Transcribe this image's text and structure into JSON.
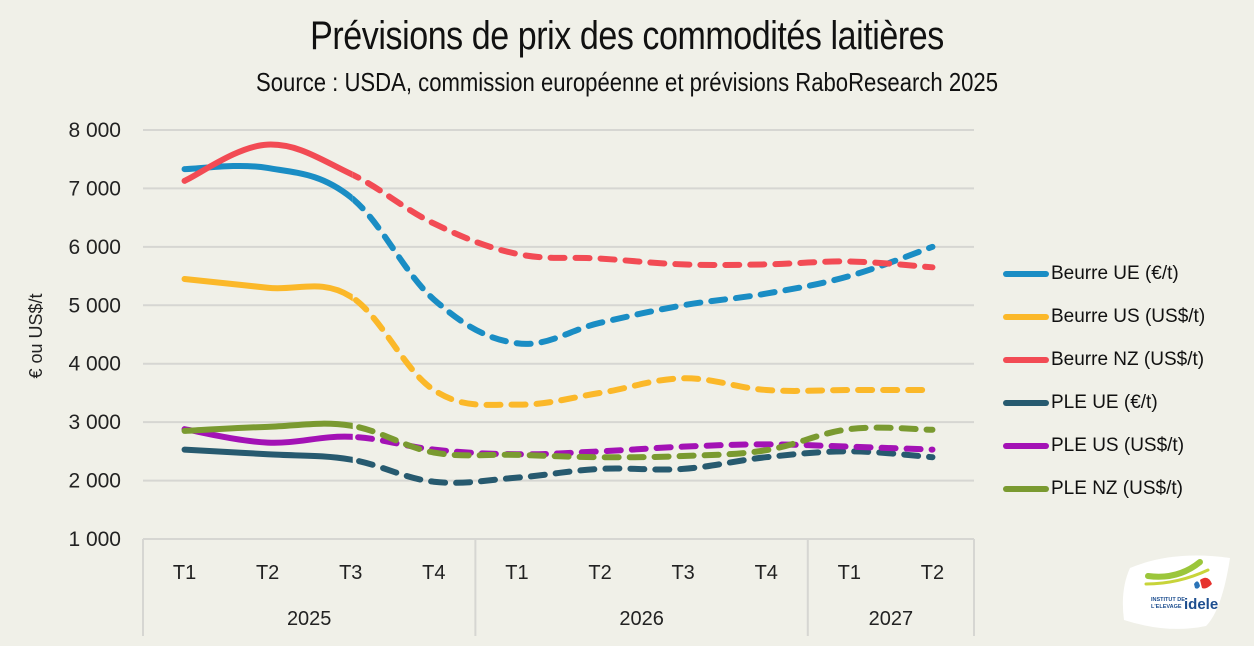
{
  "chart_data": {
    "type": "line",
    "title": "Prévisions de prix des commodités laitières",
    "subtitle": "Source : USDA, commission européenne et prévisions RaboResearch 2025",
    "ylabel": "€ ou US$/t",
    "xlabel": "",
    "ylim": [
      1000,
      8000
    ],
    "yticks": [
      1000,
      2000,
      3000,
      4000,
      5000,
      6000,
      7000,
      8000
    ],
    "ytick_labels": [
      "1 000",
      "2 000",
      "3 000",
      "4 000",
      "5 000",
      "6 000",
      "7 000",
      "8 000"
    ],
    "grid": true,
    "legend_position": "right",
    "categories": [
      "T1",
      "T2",
      "T3",
      "T4",
      "T1",
      "T2",
      "T3",
      "T4",
      "T1",
      "T2"
    ],
    "groups": [
      {
        "label": "2025",
        "count": 4
      },
      {
        "label": "2026",
        "count": 4
      },
      {
        "label": "2027",
        "count": 2
      }
    ],
    "forecast_starts_at_index": 2,
    "series": [
      {
        "name": "Beurre UE (€/t)",
        "color": "#1a8dc4",
        "values": [
          7330,
          7350,
          6850,
          5100,
          4350,
          4700,
          5000,
          5200,
          5500,
          6000
        ]
      },
      {
        "name": "Beurre US (US$/t)",
        "color": "#fbb829",
        "values": [
          5450,
          5300,
          5150,
          3550,
          3300,
          3500,
          3750,
          3550,
          3550,
          3550
        ]
      },
      {
        "name": "Beurre NZ (US$/t)",
        "color": "#f24b54",
        "values": [
          7130,
          7750,
          7250,
          6400,
          5880,
          5800,
          5700,
          5700,
          5750,
          5650
        ]
      },
      {
        "name": "PLE UE (€/t)",
        "color": "#275a6f",
        "values": [
          2530,
          2450,
          2360,
          1980,
          2050,
          2200,
          2200,
          2400,
          2500,
          2400
        ]
      },
      {
        "name": "PLE US (US$/t)",
        "color": "#a312b5",
        "values": [
          2880,
          2650,
          2750,
          2530,
          2450,
          2500,
          2580,
          2620,
          2580,
          2530
        ]
      },
      {
        "name": "PLE NZ (US$/t)",
        "color": "#7a9a30",
        "values": [
          2850,
          2920,
          2940,
          2480,
          2440,
          2400,
          2420,
          2520,
          2880,
          2870
        ]
      }
    ]
  },
  "logo": {
    "line1": "INSTITUT DE",
    "line2": "L'ELEVAGE",
    "brand": "idele"
  }
}
